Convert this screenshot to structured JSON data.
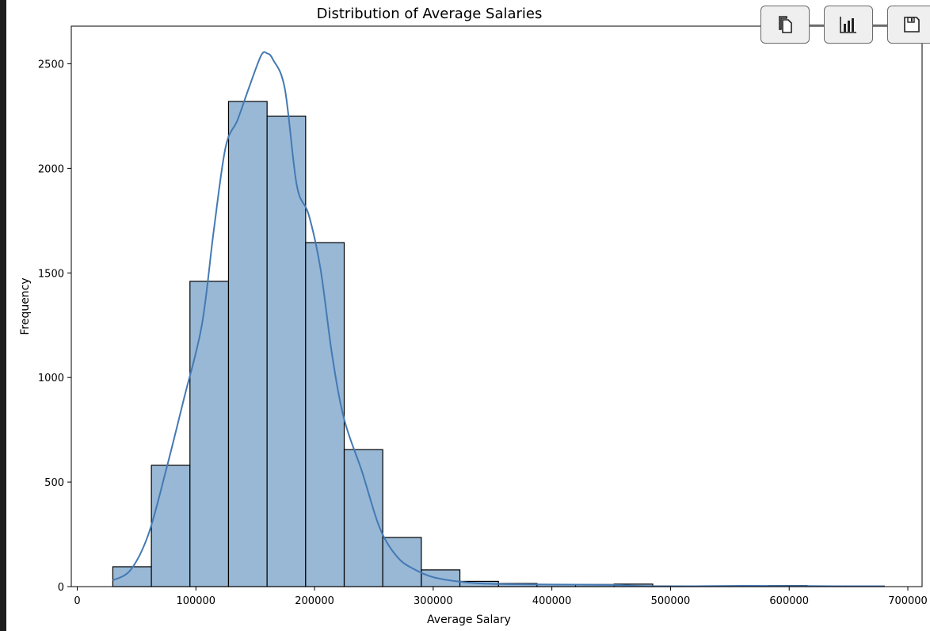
{
  "chart_data": {
    "type": "bar",
    "title": "Distribution of Average Salaries",
    "xlabel": "Average Salary",
    "ylabel": "Frequency",
    "xlim": [
      -5000,
      712000
    ],
    "ylim": [
      0,
      2680
    ],
    "xticks": [
      0,
      100000,
      200000,
      300000,
      400000,
      500000,
      600000,
      700000
    ],
    "yticks": [
      0,
      500,
      1000,
      1500,
      2000,
      2500
    ],
    "bin_start": 30000,
    "bin_width": 32500,
    "bin_counts": [
      95,
      580,
      1460,
      2320,
      2250,
      1645,
      655,
      235,
      80,
      25,
      15,
      10,
      10,
      12,
      3,
      2,
      3,
      5,
      2,
      3
    ],
    "kde": {
      "x": [
        30000,
        45000,
        60000,
        75000,
        90000,
        105000,
        115000,
        125000,
        135000,
        145000,
        155000,
        160000,
        165000,
        175000,
        185000,
        195000,
        205000,
        215000,
        225000,
        240000,
        255000,
        270000,
        285000,
        300000,
        320000,
        340000,
        360000,
        400000,
        450000,
        480000,
        520000,
        560000,
        600000,
        640000,
        680000
      ],
      "y": [
        30,
        80,
        250,
        560,
        900,
        1250,
        1700,
        2100,
        2230,
        2390,
        2540,
        2550,
        2520,
        2380,
        1920,
        1780,
        1520,
        1100,
        800,
        550,
        280,
        140,
        80,
        45,
        25,
        15,
        12,
        10,
        8,
        2,
        2,
        4,
        3,
        2,
        2
      ]
    },
    "bar_color": "#98b8d6",
    "bar_edge": "#000000",
    "kde_color": "#4479b3",
    "grid": false,
    "legend": "none"
  },
  "toolbar": [
    {
      "icon": "copy-icon"
    },
    {
      "icon": "bar-chart-icon"
    },
    {
      "icon": "save-icon"
    }
  ]
}
